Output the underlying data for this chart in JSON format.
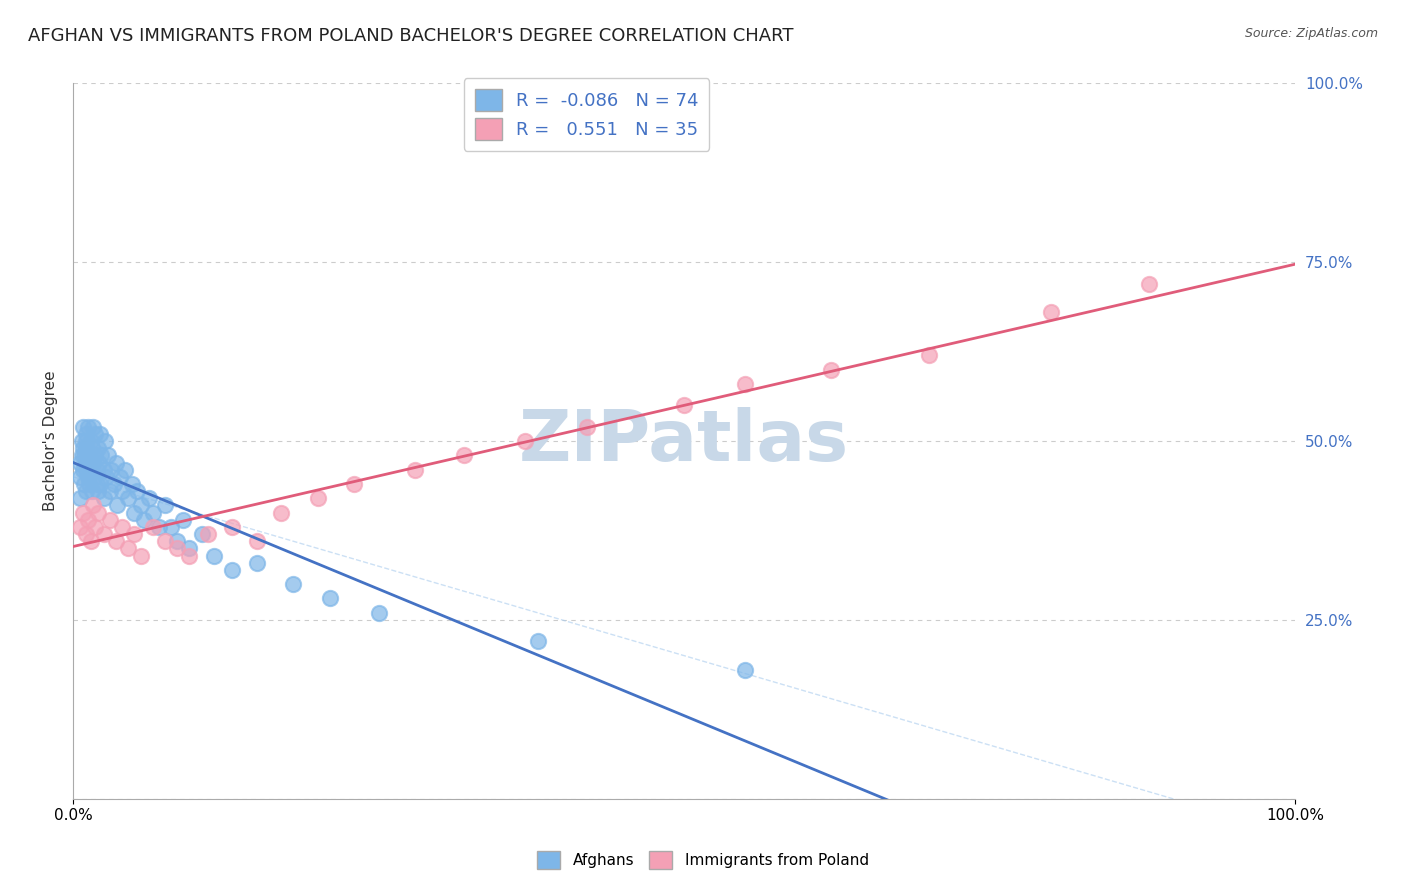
{
  "title": "AFGHAN VS IMMIGRANTS FROM POLAND BACHELOR'S DEGREE CORRELATION CHART",
  "source": "Source: ZipAtlas.com",
  "xlabel": "",
  "ylabel": "Bachelor's Degree",
  "xmin": 0.0,
  "xmax": 1.0,
  "ymin": 0.0,
  "ymax": 1.0,
  "yticks": [
    0.0,
    0.25,
    0.5,
    0.75,
    1.0
  ],
  "ytick_labels": [
    "",
    "25.0%",
    "50.0%",
    "75.0%",
    "100.0%"
  ],
  "xtick_labels": [
    "0.0%",
    "100.0%"
  ],
  "blue_R": -0.086,
  "blue_N": 74,
  "pink_R": 0.551,
  "pink_N": 35,
  "blue_color": "#7EB6E8",
  "pink_color": "#F4A0B5",
  "blue_line_color": "#4472C4",
  "pink_line_color": "#E05C7A",
  "blue_dots_x": [
    0.005,
    0.005,
    0.005,
    0.007,
    0.007,
    0.008,
    0.008,
    0.008,
    0.009,
    0.009,
    0.01,
    0.01,
    0.01,
    0.01,
    0.01,
    0.01,
    0.012,
    0.012,
    0.012,
    0.013,
    0.013,
    0.014,
    0.014,
    0.015,
    0.015,
    0.016,
    0.016,
    0.017,
    0.018,
    0.018,
    0.019,
    0.019,
    0.02,
    0.02,
    0.021,
    0.022,
    0.022,
    0.023,
    0.025,
    0.025,
    0.026,
    0.027,
    0.028,
    0.03,
    0.031,
    0.033,
    0.035,
    0.036,
    0.038,
    0.04,
    0.042,
    0.045,
    0.048,
    0.05,
    0.052,
    0.055,
    0.058,
    0.062,
    0.065,
    0.07,
    0.075,
    0.08,
    0.085,
    0.09,
    0.095,
    0.105,
    0.115,
    0.13,
    0.15,
    0.18,
    0.21,
    0.25,
    0.38,
    0.55
  ],
  "blue_dots_y": [
    0.45,
    0.47,
    0.42,
    0.5,
    0.48,
    0.52,
    0.49,
    0.46,
    0.44,
    0.48,
    0.51,
    0.49,
    0.47,
    0.43,
    0.46,
    0.5,
    0.48,
    0.45,
    0.52,
    0.47,
    0.44,
    0.5,
    0.46,
    0.49,
    0.43,
    0.52,
    0.47,
    0.45,
    0.48,
    0.51,
    0.46,
    0.44,
    0.49,
    0.43,
    0.47,
    0.51,
    0.44,
    0.48,
    0.46,
    0.42,
    0.5,
    0.45,
    0.48,
    0.43,
    0.46,
    0.44,
    0.47,
    0.41,
    0.45,
    0.43,
    0.46,
    0.42,
    0.44,
    0.4,
    0.43,
    0.41,
    0.39,
    0.42,
    0.4,
    0.38,
    0.41,
    0.38,
    0.36,
    0.39,
    0.35,
    0.37,
    0.34,
    0.32,
    0.33,
    0.3,
    0.28,
    0.26,
    0.22,
    0.18
  ],
  "pink_dots_x": [
    0.005,
    0.008,
    0.01,
    0.012,
    0.014,
    0.016,
    0.018,
    0.02,
    0.025,
    0.03,
    0.035,
    0.04,
    0.045,
    0.05,
    0.055,
    0.065,
    0.075,
    0.085,
    0.095,
    0.11,
    0.13,
    0.15,
    0.17,
    0.2,
    0.23,
    0.28,
    0.32,
    0.37,
    0.42,
    0.5,
    0.55,
    0.62,
    0.7,
    0.8,
    0.88
  ],
  "pink_dots_y": [
    0.38,
    0.4,
    0.37,
    0.39,
    0.36,
    0.41,
    0.38,
    0.4,
    0.37,
    0.39,
    0.36,
    0.38,
    0.35,
    0.37,
    0.34,
    0.38,
    0.36,
    0.35,
    0.34,
    0.37,
    0.38,
    0.36,
    0.4,
    0.42,
    0.44,
    0.46,
    0.48,
    0.5,
    0.52,
    0.55,
    0.58,
    0.6,
    0.62,
    0.68,
    0.72
  ],
  "watermark": "ZIPatlas",
  "watermark_color": "#C8D8E8",
  "background_color": "#FFFFFF",
  "grid_color": "#CCCCCC",
  "title_fontsize": 13,
  "label_fontsize": 11,
  "tick_fontsize": 11
}
